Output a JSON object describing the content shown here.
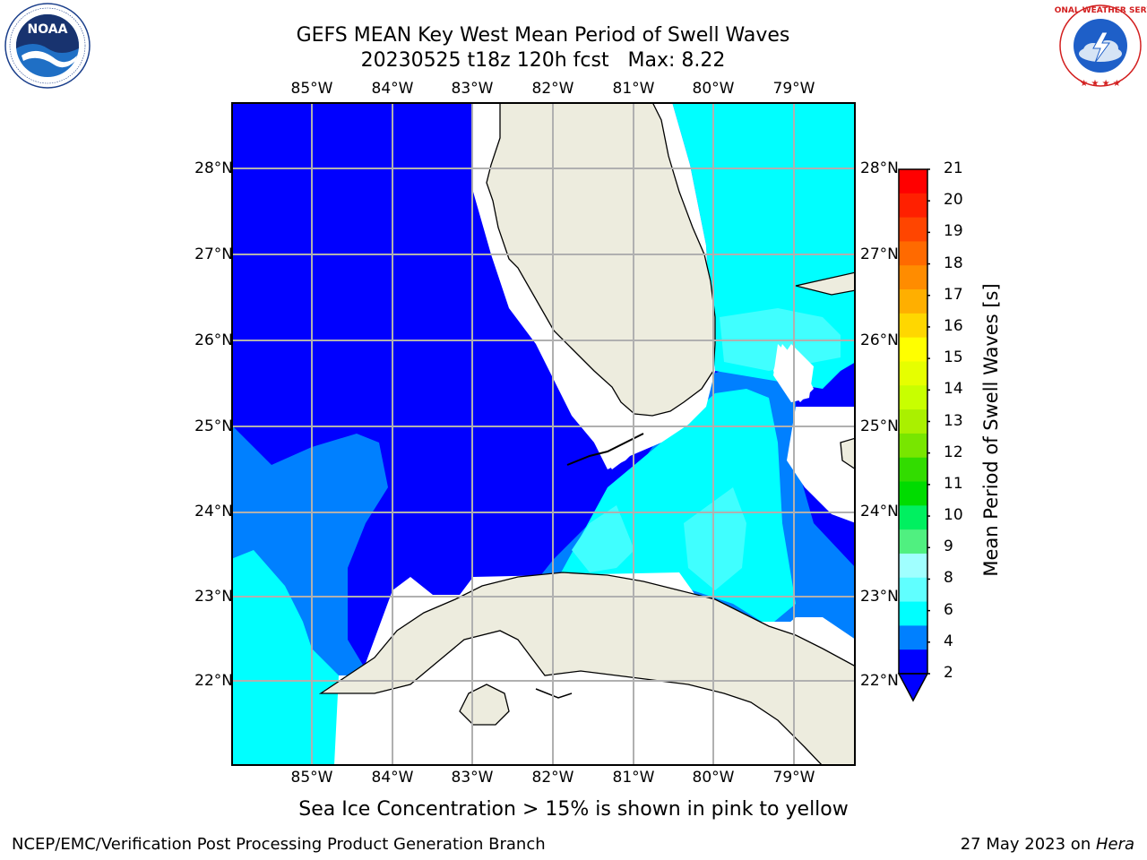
{
  "title": {
    "line1": "GEFS MEAN Key West Mean Period of Swell Waves",
    "line2": "20230525 t18z 120h fcst   Max: 8.22"
  },
  "map": {
    "lon_labels": [
      "85°W",
      "84°W",
      "83°W",
      "82°W",
      "81°W",
      "80°W",
      "79°W"
    ],
    "lat_labels": [
      "28°N",
      "27°N",
      "26°N",
      "25°N",
      "24°N",
      "23°N",
      "22°N"
    ],
    "colors": {
      "land": "#EDECDE",
      "band_2_4": "#0000FF",
      "band_4_6": "#0080FF",
      "band_6_8": "#00FFFF",
      "band_8_9": "#40FFFF",
      "grid": "#B0B0B0"
    }
  },
  "colorbar": {
    "label": "Mean Period of Swell Waves [s]",
    "ticks": [
      "21",
      "20",
      "19",
      "18",
      "17",
      "16",
      "15",
      "14",
      "13",
      "12",
      "11",
      "10",
      "9",
      "8",
      "6",
      "4",
      "2"
    ],
    "colors": [
      "#FF0000",
      "#FF2000",
      "#FF4500",
      "#FF6A00",
      "#FF8C00",
      "#FFAF00",
      "#FFD700",
      "#FFFF00",
      "#E6FF00",
      "#C8FF00",
      "#AAF000",
      "#78E600",
      "#32DC00",
      "#00DC00",
      "#00F060",
      "#50F080",
      "#A0FFFF",
      "#60FFFF",
      "#00FFFF",
      "#0080FF",
      "#0000FF"
    ]
  },
  "footer": {
    "ice_note": "Sea Ice Concentration > 15% is shown in pink to yellow",
    "left": "NCEP/EMC/Verification Post Processing Product Generation Branch",
    "date": "27 May 2023 on ",
    "host": "Hera"
  },
  "logos": {
    "noaa_text": "NOAA",
    "nws_text": "NATIONAL WEATHER SERVICE"
  }
}
